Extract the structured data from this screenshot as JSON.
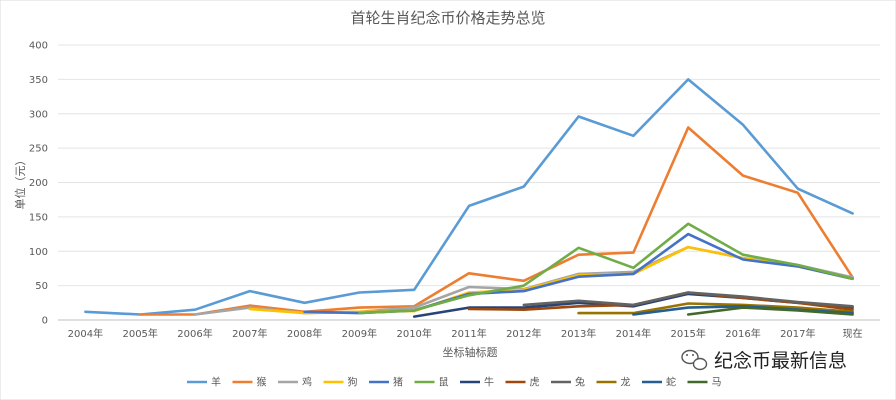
{
  "chart_data": {
    "type": "line",
    "title": "首轮生肖纪念币价格走势总览",
    "xlabel": "坐标轴标题",
    "ylabel": "单位（元）",
    "ylim": [
      0,
      400
    ],
    "yticks": [
      0,
      50,
      100,
      150,
      200,
      250,
      300,
      350,
      400
    ],
    "categories": [
      "2004年",
      "2005年",
      "2006年",
      "2007年",
      "2008年",
      "2009年",
      "2010年",
      "2011年",
      "2012年",
      "2013年",
      "2014年",
      "2015年",
      "2016年",
      "2017年",
      "现在"
    ],
    "grid": true,
    "legend_position": "bottom",
    "series": [
      {
        "name": "羊",
        "color": "#5B9BD5",
        "values": [
          12,
          8,
          15,
          42,
          25,
          40,
          44,
          166,
          194,
          296,
          268,
          350,
          284,
          191,
          155
        ]
      },
      {
        "name": "猴",
        "color": "#ED7D31",
        "values": [
          null,
          8,
          8,
          21,
          12,
          18,
          20,
          68,
          57,
          95,
          98,
          280,
          210,
          185,
          62
        ]
      },
      {
        "name": "鸡",
        "color": "#A5A5A5",
        "values": [
          null,
          null,
          8,
          18,
          10,
          12,
          18,
          48,
          45,
          67,
          70,
          106,
          90,
          80,
          62
        ]
      },
      {
        "name": "狗",
        "color": "#FFC000",
        "values": [
          null,
          null,
          null,
          16,
          10,
          12,
          13,
          40,
          44,
          65,
          67,
          106,
          90,
          78,
          60
        ]
      },
      {
        "name": "猪",
        "color": "#4472C4",
        "values": [
          null,
          null,
          null,
          null,
          12,
          10,
          14,
          38,
          42,
          63,
          67,
          125,
          88,
          78,
          60
        ]
      },
      {
        "name": "鼠",
        "color": "#70AD47",
        "values": [
          null,
          null,
          null,
          null,
          null,
          10,
          14,
          36,
          50,
          105,
          76,
          140,
          95,
          80,
          60
        ]
      },
      {
        "name": "牛",
        "color": "#264478",
        "values": [
          null,
          null,
          null,
          null,
          null,
          null,
          5,
          18,
          18,
          25,
          20,
          38,
          32,
          25,
          18
        ]
      },
      {
        "name": "虎",
        "color": "#9E480E",
        "values": [
          null,
          null,
          null,
          null,
          null,
          null,
          null,
          16,
          15,
          20,
          22,
          40,
          32,
          25,
          15
        ]
      },
      {
        "name": "兔",
        "color": "#636363",
        "values": [
          null,
          null,
          null,
          null,
          null,
          null,
          null,
          null,
          22,
          28,
          22,
          40,
          34,
          26,
          20
        ]
      },
      {
        "name": "龙",
        "color": "#997300",
        "values": [
          null,
          null,
          null,
          null,
          null,
          null,
          null,
          null,
          null,
          10,
          10,
          24,
          22,
          18,
          12
        ]
      },
      {
        "name": "蛇",
        "color": "#255E91",
        "values": [
          null,
          null,
          null,
          null,
          null,
          null,
          null,
          null,
          null,
          null,
          8,
          18,
          20,
          15,
          10
        ]
      },
      {
        "name": "马",
        "color": "#43682B",
        "values": [
          null,
          null,
          null,
          null,
          null,
          null,
          null,
          null,
          null,
          null,
          null,
          8,
          18,
          14,
          8
        ]
      }
    ]
  },
  "watermark": {
    "text": "纪念币最新信息",
    "icon": "wechat-icon"
  }
}
